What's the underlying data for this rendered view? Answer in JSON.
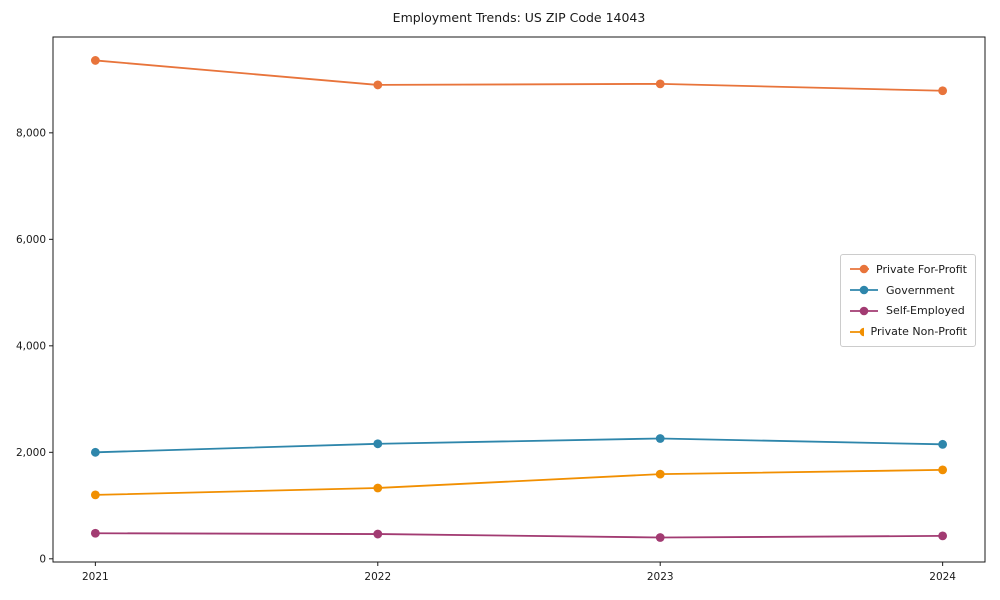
{
  "window": {
    "title": "Employment Trends: US ZIP Code 14043"
  },
  "chart_data": {
    "type": "line",
    "title": "Employment Trends: US ZIP Code 14043",
    "categories": [
      "2021",
      "2022",
      "2023",
      "2024"
    ],
    "x": [
      2021,
      2022,
      2023,
      2024
    ],
    "series": [
      {
        "name": "Private For-Profit",
        "color": "#E8743B",
        "values": [
          9360,
          8900,
          8920,
          8790
        ]
      },
      {
        "name": "Government",
        "color": "#2E86AB",
        "values": [
          2000,
          2160,
          2260,
          2150
        ]
      },
      {
        "name": "Self-Employed",
        "color": "#A23B72",
        "values": [
          480,
          465,
          400,
          430
        ]
      },
      {
        "name": "Private Non-Profit",
        "color": "#F18F01",
        "values": [
          1200,
          1330,
          1590,
          1670
        ]
      }
    ],
    "xlabel": "",
    "ylabel": "",
    "ylim": [
      -60,
      9800
    ],
    "yticks": [
      0,
      2000,
      4000,
      6000,
      8000
    ],
    "ytick_labels": [
      "0",
      "2,000",
      "4,000",
      "6,000",
      "8,000"
    ],
    "grid": false,
    "legend_position": "center-right",
    "marker": "circle",
    "axis_color": "#1a1a1a"
  }
}
